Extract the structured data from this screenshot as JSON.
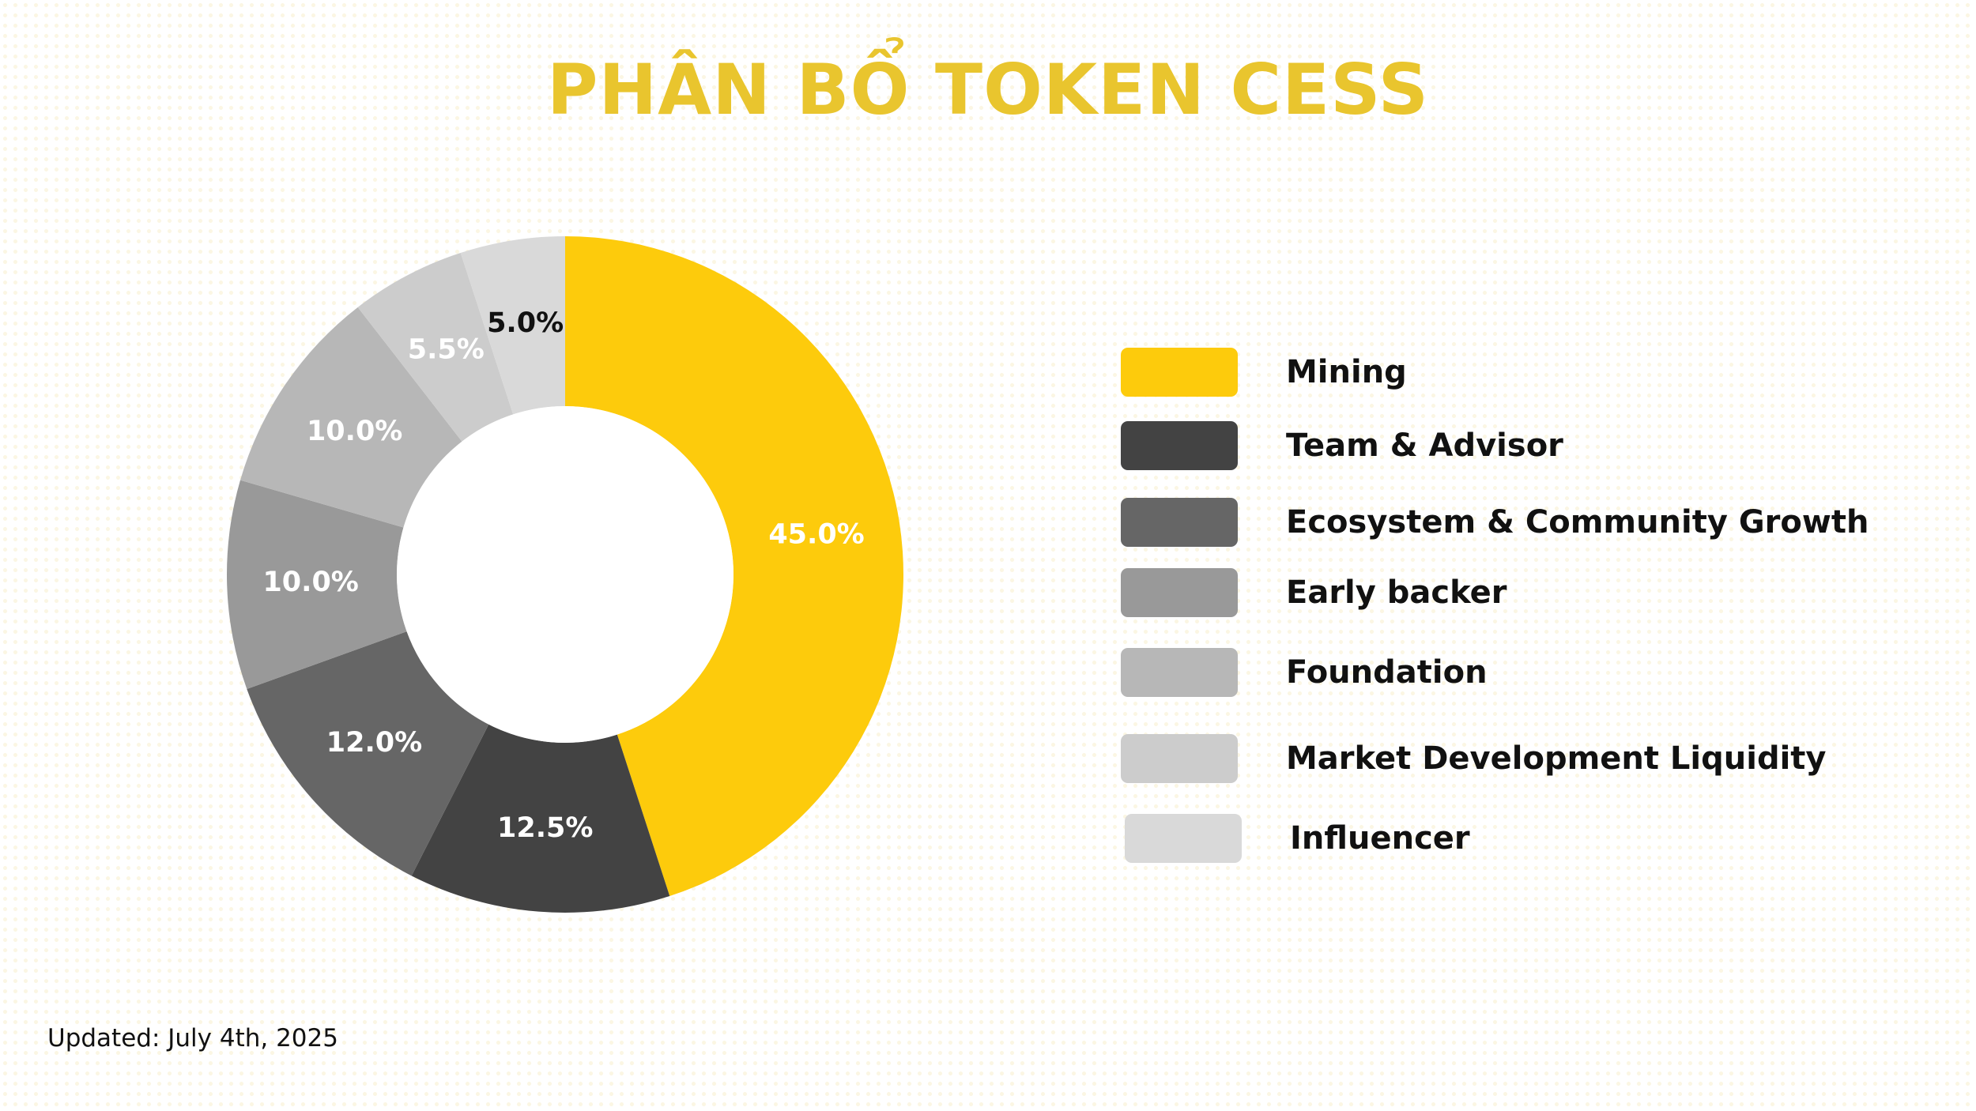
{
  "title": "PHÂN BỔ TOKEN CESS",
  "footnote": "Updated: July 4th, 2025",
  "chart_data": {
    "type": "pie",
    "donut": true,
    "title": "PHÂN BỔ TOKEN CESS",
    "legend_position": "right",
    "slices": [
      {
        "name": "Mining",
        "value": 45.0,
        "label": "45.0%",
        "color": "#fdcb0c",
        "label_color": "#ffffff"
      },
      {
        "name": "Team & Advisor",
        "value": 12.5,
        "label": "12.5%",
        "color": "#434343",
        "label_color": "#ffffff"
      },
      {
        "name": "Ecosystem & Community Growth",
        "value": 12.0,
        "label": "12.0%",
        "color": "#666666",
        "label_color": "#ffffff"
      },
      {
        "name": "Early backer",
        "value": 10.0,
        "label": "10.0%",
        "color": "#999999",
        "label_color": "#ffffff"
      },
      {
        "name": "Foundation",
        "value": 10.0,
        "label": "10.0%",
        "color": "#b7b7b7",
        "label_color": "#ffffff"
      },
      {
        "name": "Market Development Liquidity",
        "value": 5.5,
        "label": "5.5%",
        "color": "#cccccc",
        "label_color": "#ffffff"
      },
      {
        "name": "Influencer",
        "value": 5.0,
        "label": "5.0%",
        "color": "#d9d9d9",
        "label_color": "#111111"
      }
    ]
  }
}
